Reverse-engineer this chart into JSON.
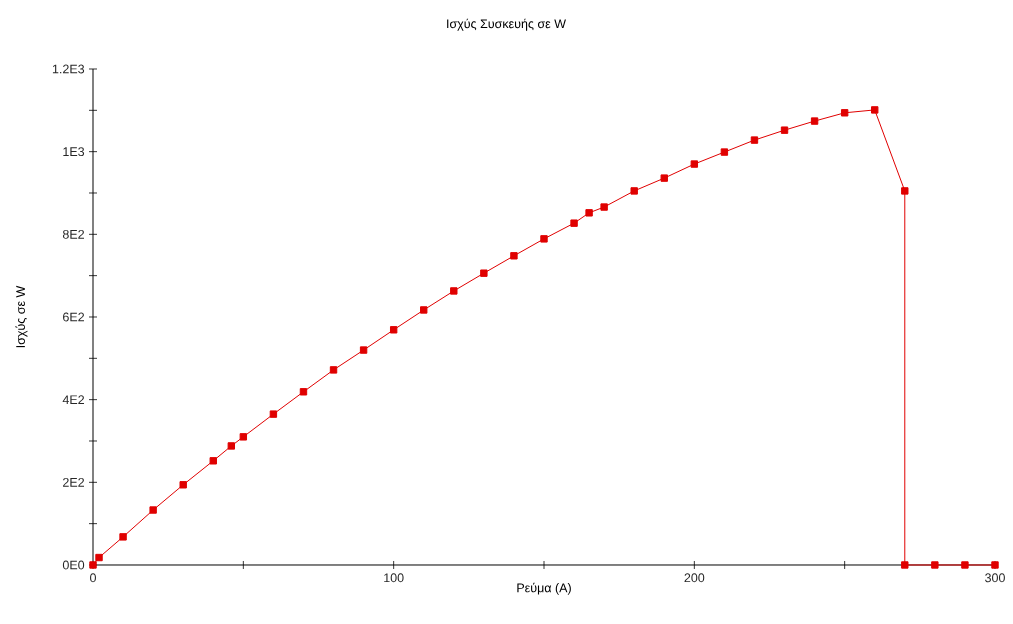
{
  "chart_data": {
    "type": "line",
    "title": "Ισχύς Συσκευής σε W",
    "xlabel": "Ρεύμα (A)",
    "ylabel": "Ισχύς σε W",
    "x": [
      0,
      2,
      10,
      20,
      30,
      40,
      46,
      50,
      60,
      70,
      80,
      90,
      100,
      110,
      120,
      130,
      140,
      150,
      160,
      165,
      170,
      180,
      190,
      200,
      210,
      220,
      230,
      240,
      250,
      260,
      270,
      270,
      280,
      290,
      300
    ],
    "series": [
      {
        "color": "#e00000",
        "values": [
          0,
          18,
          68,
          133,
          194,
          252,
          288,
          310,
          365,
          419,
          472,
          520,
          569,
          617,
          663,
          706,
          748,
          789,
          827,
          852,
          866,
          905,
          936,
          970,
          999,
          1028,
          1052,
          1074,
          1094,
          1101,
          905,
          0,
          0,
          0,
          0
        ]
      }
    ],
    "xlim": [
      0,
      300
    ],
    "ylim": [
      0,
      1200
    ],
    "xticks": [
      0,
      {
        "value": 50,
        "label": null
      },
      100,
      {
        "value": 150,
        "label": null
      },
      200,
      {
        "value": 250,
        "label": null
      },
      300
    ],
    "yticks": [
      {
        "value": 0,
        "label": "0E0"
      },
      {
        "value": 100,
        "label": null
      },
      {
        "value": 200,
        "label": "2E2"
      },
      {
        "value": 300,
        "label": null
      },
      {
        "value": 400,
        "label": "4E2"
      },
      {
        "value": 500,
        "label": null
      },
      {
        "value": 600,
        "label": "6E2"
      },
      {
        "value": 700,
        "label": null
      },
      {
        "value": 800,
        "label": "8E2"
      },
      {
        "value": 900,
        "label": null
      },
      {
        "value": 1000,
        "label": "1E3"
      },
      {
        "value": 1100,
        "label": null
      },
      {
        "value": 1200,
        "label": "1.2E3"
      }
    ],
    "grid": false,
    "marker": "square",
    "line_style": "solid"
  }
}
